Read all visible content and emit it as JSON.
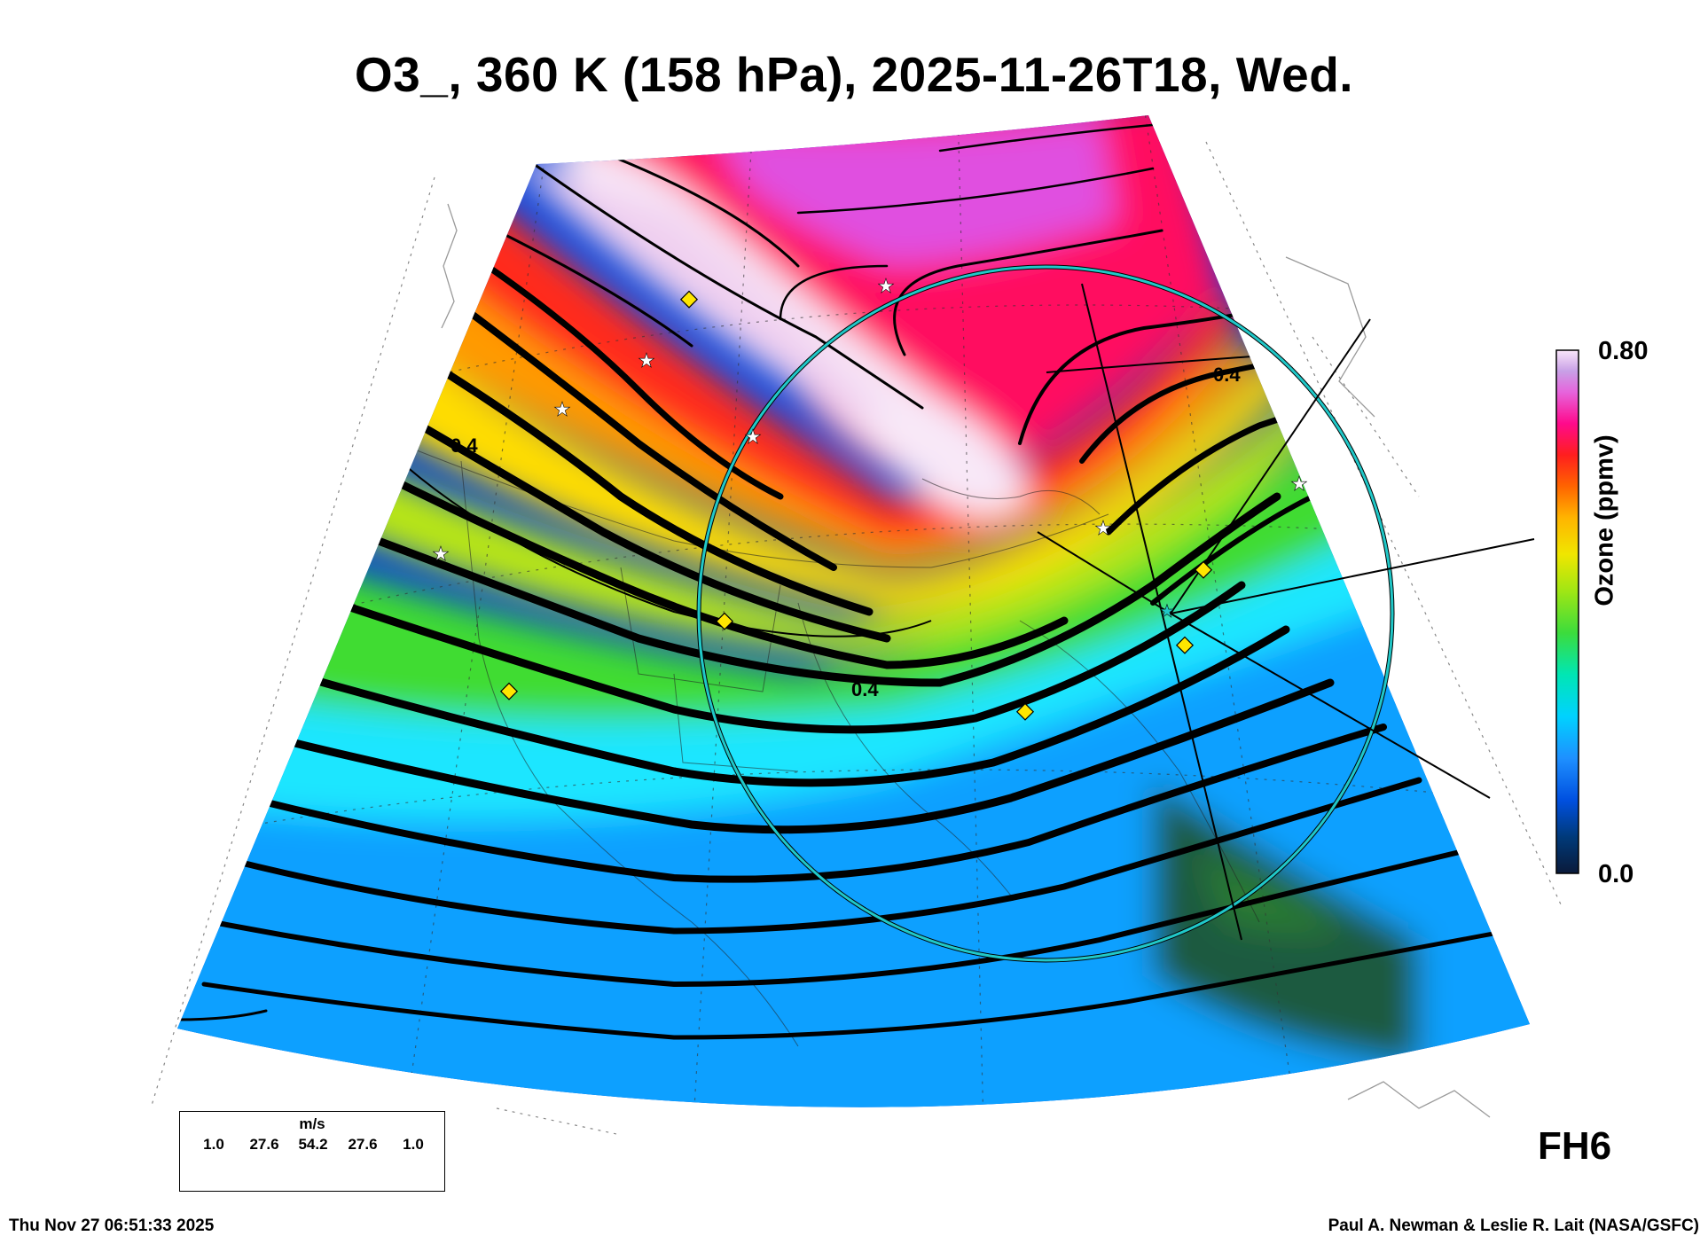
{
  "title": "O3_, 360 K (158 hPa), 2025-11-26T18, Wed.",
  "colorbar": {
    "max_label": "0.80",
    "min_label": "0.0",
    "axis_label": "Ozone (ppmv)",
    "gradient": [
      "#0a1a3a",
      "#003a7a",
      "#0050e0",
      "#1e90ff",
      "#00d2ff",
      "#00e6b4",
      "#3cdc3c",
      "#a0e614",
      "#f0e600",
      "#ffb400",
      "#ff6400",
      "#ff1e1e",
      "#ff0a8c",
      "#e664dc",
      "#c8a0e6",
      "#fae6fa"
    ]
  },
  "contour_labels": [
    "0.4",
    "0.4",
    "0.4"
  ],
  "wind_legend": {
    "unit": "m/s",
    "speeds": [
      "1.0",
      "27.6",
      "54.2",
      "27.6",
      "1.0"
    ]
  },
  "forecast_hour": "FH6",
  "footer": {
    "timestamp": "Thu Nov 27 06:51:33 2025",
    "credit": "Paul A. Newman & Leslie R. Lait (NASA/GSFC)"
  },
  "colors": {
    "range_ring": "#20c8c8",
    "marker_diamond": "#ffe600",
    "marker_star": "#ffffff",
    "streamline": "#000000"
  }
}
